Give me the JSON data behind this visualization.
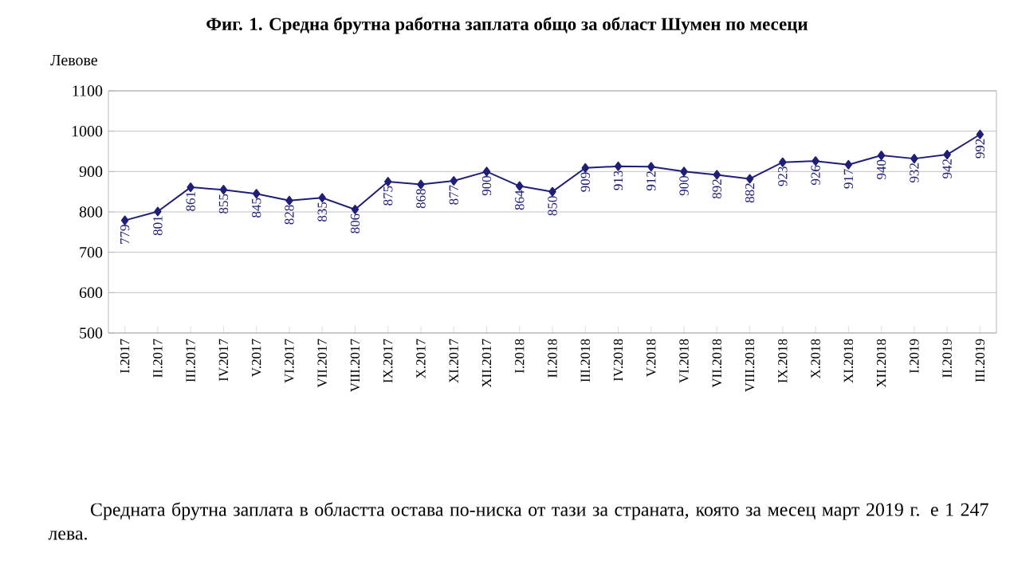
{
  "chart_data": {
    "type": "line",
    "title": "Фиг. 1. Средна брутна работна заплата общо за област Шумен по месеци",
    "ylabel": "Левове",
    "categories": [
      "I.2017",
      "II.2017",
      "III.2017",
      "IV.2017",
      "V.2017",
      "VI.2017",
      "VII.2017",
      "VIII.2017",
      "IX.2017",
      "X.2017",
      "XI.2017",
      "XII.2017",
      "I.2018",
      "II.2018",
      "III.2018",
      "IV.2018",
      "V.2018",
      "VI.2018",
      "VII.2018",
      "VIII.2018",
      "IX.2018",
      "X.2018",
      "XI.2018",
      "XII.2018",
      "I.2019",
      "II.2019",
      "III.2019"
    ],
    "values": [
      779,
      801,
      861,
      855,
      845,
      828,
      835,
      806,
      875,
      868,
      877,
      900,
      864,
      850,
      909,
      913,
      912,
      900,
      892,
      882,
      923,
      926,
      917,
      940,
      932,
      942,
      992
    ],
    "color": "#1f1f78",
    "marker": "diamond",
    "data_labels": true,
    "grid": "y",
    "ylim": [
      500,
      1100
    ],
    "yticks": [
      500,
      600,
      700,
      800,
      900,
      1000,
      1100
    ],
    "annotations": [
      "Средната брутна заплата в областта остава по-ниска от тази за страната, която за месец март 2019 г. е 1 247 лева."
    ]
  }
}
